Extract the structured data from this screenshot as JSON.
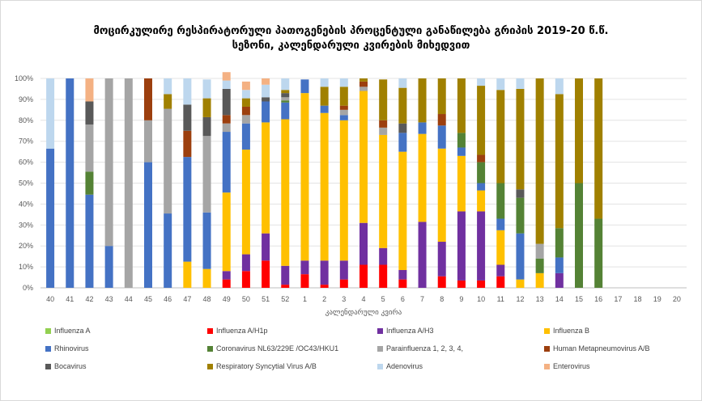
{
  "title_line1": "მოცირკულირე რესპირატორული  პათოგენების პროცენტული განაწილება გრიპის 2019-20 წ.წ.",
  "title_line2": "სეზონი, კალენდარული კვირების მიხედვით",
  "chart_data": {
    "type": "bar",
    "stacked": true,
    "title": "მოცირკულირე რესპირატორული  პათოგენების პროცენტული განაწილება გრიპის 2019-20 წ.წ. სეზონი, კალენდარული კვირების მიხედვით",
    "xlabel": "კალენდარული კვირა",
    "ylabel": "",
    "ylim": [
      0,
      100
    ],
    "ytick_labels": [
      "0%",
      "10%",
      "20%",
      "30%",
      "40%",
      "50%",
      "60%",
      "70%",
      "80%",
      "90%",
      "100%"
    ],
    "grid": true,
    "legend_position": "bottom",
    "categories": [
      "40",
      "41",
      "42",
      "43",
      "44",
      "45",
      "46",
      "47",
      "48",
      "49",
      "50",
      "51",
      "52",
      "1",
      "2",
      "3",
      "4",
      "5",
      "6",
      "7",
      "8",
      "9",
      "10",
      "11",
      "12",
      "13",
      "14",
      "15",
      "16",
      "17",
      "18",
      "19",
      "20"
    ],
    "series": [
      {
        "name": "Influenza A",
        "color": "#92d050",
        "values": [
          0,
          0,
          0,
          0,
          0,
          0,
          0,
          0,
          0,
          0,
          0,
          0,
          0,
          0,
          0,
          0,
          0,
          0,
          0,
          0,
          0,
          0,
          0,
          0,
          0,
          0,
          0,
          0,
          0,
          0,
          0,
          0,
          0
        ]
      },
      {
        "name": "Influenza A/H1p",
        "color": "#ff0000",
        "values": [
          0,
          0,
          0,
          0,
          0,
          0,
          0,
          0,
          0,
          4,
          8,
          13,
          1.5,
          6.5,
          1.5,
          4,
          11,
          11,
          4,
          0,
          5.5,
          3.5,
          3.5,
          5.5,
          0,
          0,
          0,
          0,
          0,
          0,
          0,
          0,
          0
        ]
      },
      {
        "name": "Influenza A/H3",
        "color": "#7030a0",
        "values": [
          0,
          0,
          0,
          0,
          0,
          0,
          0,
          0,
          0,
          4,
          8,
          13,
          9,
          6.5,
          11.5,
          9,
          20,
          8,
          4.5,
          31.5,
          16.5,
          33,
          33,
          5.5,
          0,
          0,
          7,
          0,
          0,
          0,
          0,
          0,
          0
        ]
      },
      {
        "name": "Influenza B",
        "color": "#ffc000",
        "values": [
          0,
          0,
          0,
          0,
          0,
          0,
          0,
          12.5,
          9,
          37.5,
          50,
          53,
          70,
          80,
          70.5,
          67,
          63,
          54,
          56.5,
          42,
          44.5,
          26.5,
          10,
          16.5,
          4,
          7,
          0,
          0,
          0,
          0,
          0,
          0,
          0
        ]
      },
      {
        "name": "Rhinovirus",
        "color": "#4472c4",
        "values": [
          66.5,
          100,
          44.5,
          20,
          0,
          60,
          35.5,
          50,
          27,
          29,
          12.5,
          10,
          8,
          6.5,
          3.5,
          2.5,
          0,
          0,
          9,
          5.5,
          11,
          4,
          3.5,
          5.5,
          22,
          0,
          7.5,
          0,
          0,
          0,
          0,
          0,
          0
        ]
      },
      {
        "name": "Coronavirus NL63/229E /OC43/HKU1",
        "color": "#548235",
        "values": [
          0,
          0,
          11,
          0,
          0,
          0,
          0,
          0,
          0,
          0,
          0,
          0,
          1,
          0,
          0,
          0,
          0,
          0,
          0,
          0,
          0,
          7,
          10,
          17,
          17,
          7,
          14,
          50,
          33,
          0,
          0,
          0,
          0
        ]
      },
      {
        "name": "Parainfluenza 1, 2, 3, 4,",
        "color": "#a5a5a5",
        "values": [
          0,
          0,
          22.5,
          80,
          100,
          20,
          50,
          0,
          36.5,
          4,
          4,
          0,
          1.5,
          0,
          0,
          2.5,
          2,
          3.5,
          0,
          0,
          0,
          0,
          0,
          0,
          0,
          7,
          0,
          0,
          0,
          0,
          0,
          0,
          0
        ]
      },
      {
        "name": "Human Metapneumovirus A/B",
        "color": "#9c3f0e",
        "values": [
          0,
          0,
          0,
          0,
          0,
          20,
          0,
          12.5,
          0,
          4,
          4,
          0,
          0,
          0,
          0,
          2,
          2.5,
          3.5,
          0,
          0,
          5.5,
          0,
          3.5,
          0,
          0,
          0,
          0,
          0,
          0,
          0,
          0,
          0,
          0
        ]
      },
      {
        "name": "Bocavirus",
        "color": "#595959",
        "values": [
          0,
          0,
          11,
          0,
          0,
          0,
          0,
          12.5,
          9,
          12.5,
          0,
          2,
          2,
          0,
          0,
          0,
          0,
          0,
          4.5,
          0,
          0,
          0,
          0,
          0,
          4,
          0,
          0,
          0,
          0,
          0,
          0,
          0,
          0
        ]
      },
      {
        "name": "Respiratory Syncytial Virus A/B",
        "color": "#a08000",
        "values": [
          0,
          0,
          0,
          0,
          0,
          0,
          7,
          0,
          9,
          0,
          4,
          0,
          1.5,
          0,
          9,
          9,
          1.5,
          19.5,
          17,
          21,
          17,
          26,
          33,
          44.5,
          48,
          79,
          64,
          50,
          67,
          0,
          0,
          0,
          0
        ]
      },
      {
        "name": "Adenovirus",
        "color": "#bdd7ee",
        "values": [
          33.5,
          0,
          0,
          0,
          0,
          0,
          7.5,
          12.5,
          9,
          4,
          4,
          6,
          5.5,
          0,
          4,
          4,
          0,
          0,
          4.5,
          0,
          0,
          0,
          3.5,
          5.5,
          5,
          0,
          7.5,
          0,
          0,
          0,
          0,
          0,
          0
        ]
      },
      {
        "name": "Enterovirus",
        "color": "#f4b183",
        "values": [
          0,
          0,
          11,
          0,
          0,
          0,
          0,
          0,
          0,
          4,
          4,
          3,
          0,
          0,
          0,
          0,
          0,
          0,
          0,
          0,
          0,
          0,
          0,
          0,
          0,
          0,
          0,
          0,
          0,
          0,
          0,
          0,
          0
        ]
      }
    ]
  }
}
